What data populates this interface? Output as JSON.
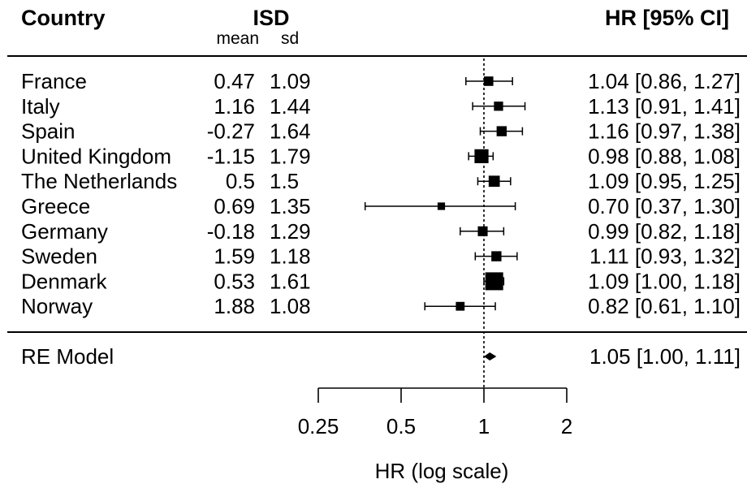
{
  "chart_data": {
    "type": "forest",
    "headers": {
      "country": "Country",
      "group": "ISD",
      "mean": "mean",
      "sd": "sd",
      "effect": "HR [95% CI]"
    },
    "rows": [
      {
        "country": "France",
        "mean": "0.47",
        "sd": "1.09",
        "hr": 1.04,
        "lo": 0.86,
        "hi": 1.27,
        "label": "1.04 [0.86, 1.27]",
        "weight": 0.35
      },
      {
        "country": "Italy",
        "mean": "1.16",
        "sd": "1.44",
        "hr": 1.13,
        "lo": 0.91,
        "hi": 1.41,
        "label": "1.13 [0.91, 1.41]",
        "weight": 0.33
      },
      {
        "country": "Spain",
        "mean": "-0.27",
        "sd": "1.64",
        "hr": 1.16,
        "lo": 0.97,
        "hi": 1.38,
        "label": "1.16 [0.97, 1.38]",
        "weight": 0.4
      },
      {
        "country": "United Kingdom",
        "mean": "-1.15",
        "sd": "1.79",
        "hr": 0.98,
        "lo": 0.88,
        "hi": 1.08,
        "label": "0.98 [0.88, 1.08]",
        "weight": 0.7
      },
      {
        "country": "The Netherlands",
        "mean": "0.5",
        "sd": "1.5",
        "hr": 1.09,
        "lo": 0.95,
        "hi": 1.25,
        "label": "1.09 [0.95, 1.25]",
        "weight": 0.48
      },
      {
        "country": "Greece",
        "mean": "0.69",
        "sd": "1.35",
        "hr": 0.7,
        "lo": 0.37,
        "hi": 1.3,
        "label": "0.70 [0.37, 1.30]",
        "weight": 0.2
      },
      {
        "country": "Germany",
        "mean": "-0.18",
        "sd": "1.29",
        "hr": 0.99,
        "lo": 0.82,
        "hi": 1.18,
        "label": "0.99 [0.82, 1.18]",
        "weight": 0.38
      },
      {
        "country": "Sweden",
        "mean": "1.59",
        "sd": "1.18",
        "hr": 1.11,
        "lo": 0.93,
        "hi": 1.32,
        "label": "1.11 [0.93, 1.32]",
        "weight": 0.4
      },
      {
        "country": "Denmark",
        "mean": "0.53",
        "sd": "1.61",
        "hr": 1.09,
        "lo": 1.0,
        "hi": 1.18,
        "label": "1.09 [1.00, 1.18]",
        "weight": 1.0
      },
      {
        "country": "Norway",
        "mean": "1.88",
        "sd": "1.08",
        "hr": 0.82,
        "lo": 0.61,
        "hi": 1.1,
        "label": "0.82 [0.61, 1.10]",
        "weight": 0.3
      }
    ],
    "summary": {
      "label_text": "RE Model",
      "hr": 1.05,
      "lo": 1.0,
      "hi": 1.11,
      "label": "1.05 [1.00, 1.11]"
    },
    "x_axis": {
      "scale": "log",
      "ticks": [
        0.25,
        0.5,
        1,
        2
      ],
      "tick_labels": [
        "0.25",
        "0.5",
        "1",
        "2"
      ],
      "label": "HR (log scale)",
      "reference_line": 1
    }
  }
}
